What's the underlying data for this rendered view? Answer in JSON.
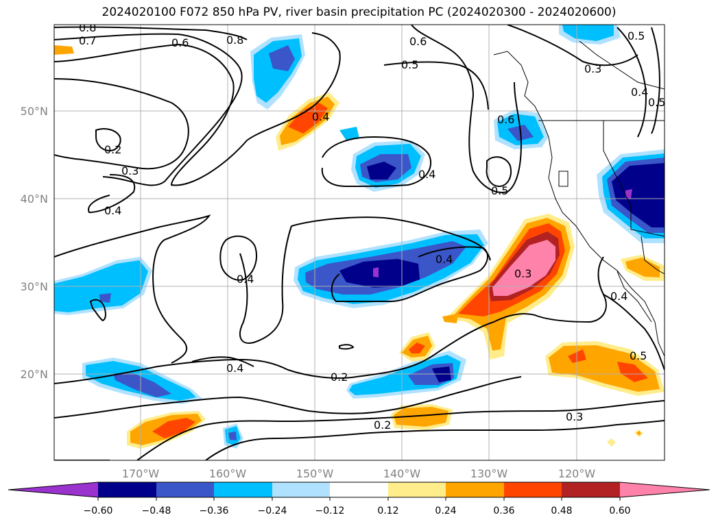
{
  "title": "2024020100 F072 850 hPa PV, river basin precipitation PC (2024020300 - 2024020600)",
  "map": {
    "lat_labels": [
      "50°N",
      "40°N",
      "30°N",
      "20°N"
    ],
    "lon_labels": [
      "170°W",
      "160°W",
      "150°W",
      "140°W",
      "130°W",
      "120°W"
    ],
    "contour_labels": [
      "0.8",
      "0.7",
      "0.6",
      "0.8",
      "0.6",
      "0.5",
      "0.3",
      "0.5",
      "0.4",
      "0.5",
      "0.4",
      "0.2",
      "0.3",
      "0.4",
      "0.4",
      "0.6",
      "0.5",
      "0.4",
      "0.3",
      "0.4",
      "0.4",
      "0.4",
      "0.2",
      "0.5",
      "0.3",
      "0.2"
    ],
    "colors": {
      "neg_072": "#9a32cd",
      "neg_060": "#00008b",
      "neg_048": "#3a56c8",
      "neg_036": "#00bfff",
      "neg_024": "#b0e2ff",
      "pos_024": "#ffec8b",
      "pos_036": "#ffa500",
      "pos_048": "#ff4500",
      "pos_060": "#b22222",
      "pos_072": "#ff82ab"
    }
  },
  "colorbar": {
    "ticks": [
      "−0.60",
      "−0.48",
      "−0.36",
      "−0.24",
      "−0.12",
      "0.12",
      "0.24",
      "0.36",
      "0.48",
      "0.60"
    ],
    "colors": [
      "#9a32cd",
      "#00008b",
      "#3a56c8",
      "#00bfff",
      "#b0e2ff",
      "#ffffff",
      "#ffec8b",
      "#ffa500",
      "#ff4500",
      "#b22222",
      "#ff82ab"
    ]
  }
}
